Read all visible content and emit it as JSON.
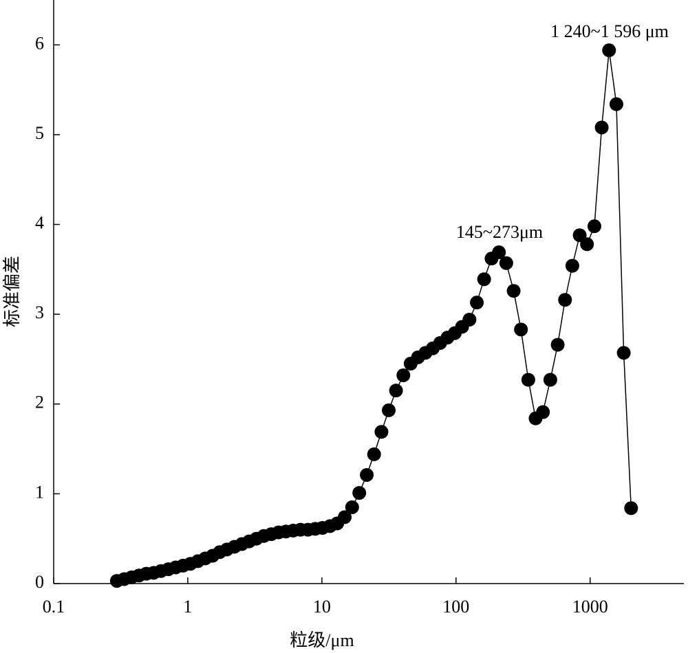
{
  "chart_data": {
    "type": "line",
    "x_label": "粒级/μm",
    "y_label": "标准偏差",
    "annotations": [
      "145~273μm",
      "1 240~1 596 μm"
    ],
    "log_x": true,
    "color": "#000000",
    "marker": "circle",
    "xlim": [
      0.1,
      5000
    ],
    "xticks": [
      0.1,
      1,
      10,
      100,
      1000
    ],
    "ylim": [
      0,
      6.5
    ],
    "yticks": [
      0,
      1,
      2,
      3,
      4,
      5,
      6
    ],
    "x": [
      0.296,
      0.336,
      0.381,
      0.433,
      0.491,
      0.557,
      0.632,
      0.717,
      0.813,
      0.922,
      1.046,
      1.19,
      1.35,
      1.53,
      1.73,
      1.96,
      2.23,
      2.53,
      2.87,
      3.25,
      3.69,
      4.19,
      4.75,
      5.39,
      6.11,
      6.93,
      7.87,
      8.92,
      10.1,
      11.5,
      13.0,
      14.8,
      16.8,
      19.0,
      21.6,
      24.5,
      27.8,
      31.5,
      35.7,
      40.5,
      45.9,
      52.1,
      59.2,
      67.1,
      76.2,
      86.4,
      98.0,
      111,
      126,
      143,
      162,
      184,
      209,
      237,
      269,
      305,
      346,
      392,
      445,
      505,
      573,
      650,
      737,
      836,
      948,
      1076,
      1220,
      1384,
      1570,
      1781,
      2021
    ],
    "values": [
      0.03,
      0.05,
      0.07,
      0.09,
      0.11,
      0.12,
      0.14,
      0.16,
      0.18,
      0.2,
      0.22,
      0.25,
      0.28,
      0.31,
      0.35,
      0.38,
      0.41,
      0.44,
      0.47,
      0.5,
      0.53,
      0.55,
      0.57,
      0.58,
      0.59,
      0.6,
      0.6,
      0.61,
      0.62,
      0.64,
      0.67,
      0.74,
      0.85,
      1.01,
      1.21,
      1.44,
      1.69,
      1.93,
      2.15,
      2.32,
      2.45,
      2.52,
      2.57,
      2.62,
      2.68,
      2.74,
      2.79,
      2.86,
      2.94,
      3.13,
      3.39,
      3.62,
      3.69,
      3.57,
      3.26,
      2.83,
      2.27,
      1.84,
      1.91,
      2.27,
      2.66,
      3.16,
      3.54,
      3.88,
      3.78,
      3.98,
      5.08,
      5.94,
      5.34,
      2.57,
      0.84
    ]
  }
}
